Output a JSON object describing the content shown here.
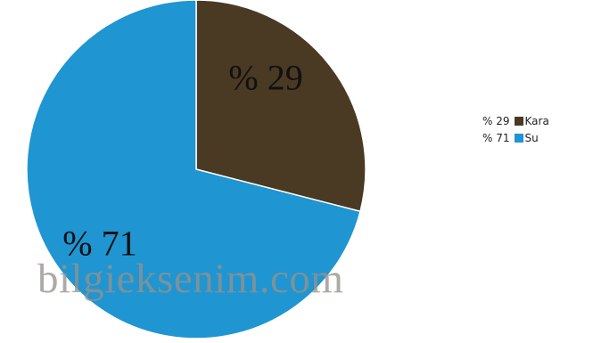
{
  "chart_data": {
    "type": "pie",
    "categories": [
      "Kara",
      "Su"
    ],
    "values": [
      29,
      71
    ],
    "slice_labels": [
      "% 29",
      "% 71"
    ],
    "colors": [
      "#4a3a24",
      "#1f95d1"
    ],
    "legend": [
      {
        "value_label": "% 29",
        "name": "Kara",
        "color": "#4a3a24"
      },
      {
        "value_label": "% 71",
        "name": "Su",
        "color": "#1f95d1"
      }
    ],
    "legend_position": "right",
    "title": ""
  },
  "watermark": "bilgieksenim.com"
}
